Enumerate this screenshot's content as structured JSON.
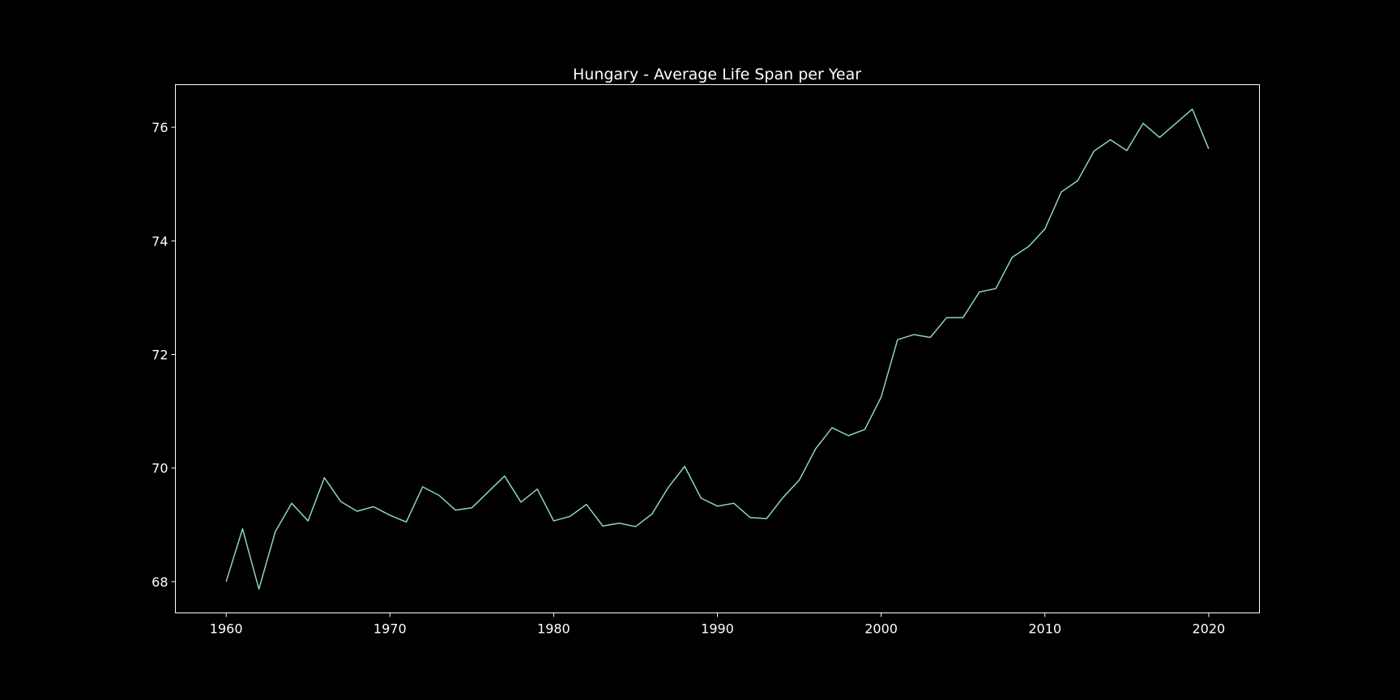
{
  "chart_data": {
    "type": "line",
    "title": "Hungary - Average Life Span per Year",
    "xlabel": "",
    "ylabel": "",
    "xlim": [
      1956.9,
      2023.1
    ],
    "ylim": [
      67.45,
      76.75
    ],
    "x_ticks": [
      1960,
      1970,
      1980,
      1990,
      2000,
      2010,
      2020
    ],
    "y_ticks": [
      68,
      70,
      72,
      74,
      76
    ],
    "grid": false,
    "legend": "none",
    "colors": {
      "background": "#000000",
      "axes": "#ffffff",
      "line": "#8dd3c7",
      "text": "#ffffff"
    },
    "series": [
      {
        "x": [
          1960,
          1961,
          1962,
          1963,
          1964,
          1965,
          1966,
          1967,
          1968,
          1969,
          1970,
          1971,
          1972,
          1973,
          1974,
          1975,
          1976,
          1977,
          1978,
          1979,
          1980,
          1981,
          1982,
          1983,
          1984,
          1985,
          1986,
          1987,
          1988,
          1989,
          1990,
          1991,
          1992,
          1993,
          1994,
          1995,
          1996,
          1997,
          1998,
          1999,
          2000,
          2001,
          2002,
          2003,
          2004,
          2005,
          2006,
          2007,
          2008,
          2009,
          2010,
          2011,
          2012,
          2013,
          2014,
          2015,
          2016,
          2017,
          2018,
          2019,
          2020
        ],
        "values": [
          68.0,
          68.93,
          67.87,
          68.88,
          69.38,
          69.07,
          69.83,
          69.41,
          69.24,
          69.32,
          69.17,
          69.05,
          69.67,
          69.52,
          69.26,
          69.3,
          69.58,
          69.86,
          69.4,
          69.63,
          69.07,
          69.15,
          69.36,
          68.98,
          69.03,
          68.97,
          69.19,
          69.66,
          70.03,
          69.47,
          69.33,
          69.38,
          69.13,
          69.11,
          69.48,
          69.79,
          70.34,
          70.71,
          70.57,
          70.68,
          71.25,
          72.26,
          72.35,
          72.3,
          72.65,
          72.65,
          73.1,
          73.16,
          73.71,
          73.9,
          74.21,
          74.86,
          75.06,
          75.58,
          75.78,
          75.59,
          76.07,
          75.82,
          76.07,
          76.32,
          75.62
        ]
      }
    ]
  }
}
